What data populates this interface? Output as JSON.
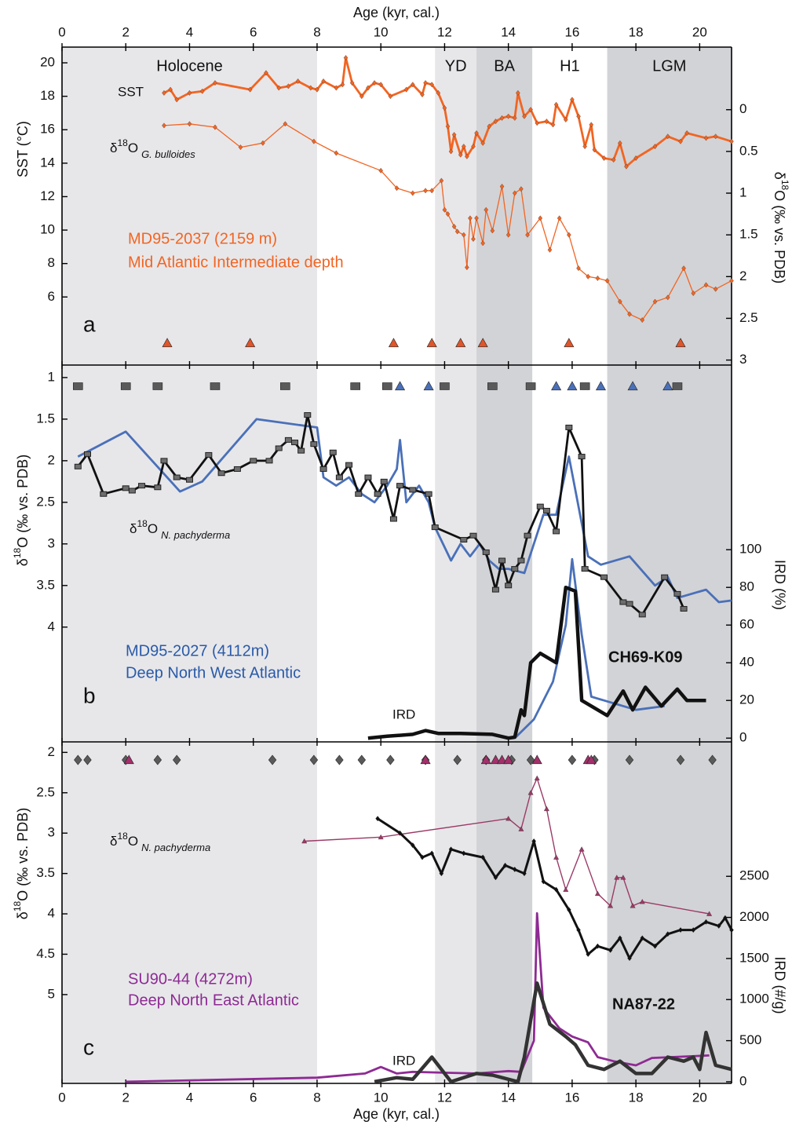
{
  "age_axis": {
    "label": "Age (kyr, cal.)",
    "xlim": [
      0,
      21
    ],
    "xticks": [
      0,
      2,
      4,
      6,
      8,
      10,
      12,
      14,
      16,
      18,
      20
    ]
  },
  "periods": [
    {
      "name": "Holocene",
      "range": [
        0,
        8
      ],
      "shade": "#e7e7ea"
    },
    {
      "name": "YD",
      "range": [
        11.7,
        13.0
      ],
      "shade": "#e7e7ea"
    },
    {
      "name": "BA",
      "range": [
        13.0,
        14.75
      ],
      "shade": "#d2d3d6"
    },
    {
      "name": "H1",
      "range": [
        14.75,
        17.1
      ],
      "shade": null
    },
    {
      "name": "LGM",
      "range": [
        17.1,
        21
      ],
      "shade": "#d2d3d6"
    }
  ],
  "chart_data": [
    {
      "type": "line",
      "label": "a",
      "ylabel": "SST (°C)",
      "y2label": {
        "pre": "δ",
        "sup": "18",
        "post": "O (‰ vs. PDB)"
      },
      "ylim": [
        1.93,
        20.94
      ],
      "yticks": [
        6,
        8,
        10,
        12,
        14,
        16,
        18,
        20
      ],
      "y2lim": [
        3.06,
        -0.75
      ],
      "y2ticks": [
        0,
        0.5,
        1,
        1.5,
        2,
        2.5,
        3
      ],
      "annotations": [
        "MD95-2037 (2159 m)",
        "Mid Atlantic Intermediate depth"
      ],
      "series": [
        {
          "name": "SST",
          "color": "#f26522",
          "width": 2.8,
          "marker": "diamond",
          "x": [
            3.2,
            3.4,
            3.6,
            4.0,
            4.4,
            4.8,
            5.9,
            6.4,
            6.8,
            7.1,
            7.4,
            7.8,
            8.0,
            8.2,
            8.6,
            8.8,
            8.9,
            9.1,
            9.4,
            9.6,
            9.8,
            10.0,
            10.3,
            10.8,
            11.0,
            11.3,
            11.4,
            11.6,
            11.8,
            12.0,
            12.1,
            12.2,
            12.3,
            12.5,
            12.6,
            12.7,
            12.9,
            13.0,
            13.2,
            13.4,
            13.6,
            13.8,
            14.0,
            14.2,
            14.3,
            14.5,
            14.7,
            14.9,
            15.2,
            15.4,
            15.5,
            15.8,
            16.0,
            16.2,
            16.4,
            16.6,
            16.7,
            17.0,
            17.3,
            17.5,
            17.7,
            18.0,
            18.6,
            19.0,
            19.4,
            19.6,
            20.2,
            20.5,
            21.0
          ],
          "values": [
            18.2,
            18.4,
            17.8,
            18.2,
            18.3,
            18.8,
            18.4,
            19.4,
            18.5,
            18.6,
            18.9,
            18.5,
            18.4,
            18.9,
            18.5,
            18.7,
            20.3,
            18.8,
            18.0,
            18.5,
            18.8,
            18.7,
            18.0,
            18.4,
            18.7,
            18.1,
            18.8,
            18.7,
            18.2,
            17.3,
            16.2,
            14.7,
            15.7,
            14.5,
            15.0,
            14.4,
            15.0,
            15.8,
            15.2,
            16.2,
            16.5,
            16.7,
            16.8,
            16.7,
            18.2,
            16.8,
            17.2,
            16.4,
            16.5,
            16.3,
            17.5,
            16.6,
            17.8,
            16.8,
            15.0,
            16.3,
            14.8,
            14.3,
            14.2,
            15.2,
            13.8,
            14.3,
            15.0,
            15.6,
            15.3,
            15.8,
            15.5,
            15.6,
            15.3
          ]
        },
        {
          "name": {
            "pre": "δ",
            "sup": "18",
            "mid": "O",
            "sub": "G. bulloides"
          },
          "axis": "y2",
          "color": "#f26522",
          "width": 1.3,
          "marker": "diamond",
          "x": [
            3.2,
            4.0,
            4.8,
            5.6,
            6.3,
            7.0,
            7.9,
            8.6,
            10.0,
            10.5,
            11.0,
            11.4,
            11.6,
            11.9,
            12.0,
            12.1,
            12.3,
            12.4,
            12.6,
            12.7,
            12.8,
            12.9,
            13.0,
            13.2,
            13.3,
            13.5,
            13.8,
            14.0,
            14.2,
            14.4,
            14.6,
            15.0,
            15.3,
            15.6,
            15.9,
            16.2,
            16.5,
            16.8,
            17.1,
            17.5,
            17.8,
            18.2,
            18.6,
            19.0,
            19.5,
            19.8,
            20.2,
            20.5,
            21.0
          ],
          "values": [
            0.19,
            0.17,
            0.21,
            0.45,
            0.4,
            0.17,
            0.38,
            0.52,
            0.73,
            0.94,
            1.0,
            0.97,
            0.97,
            0.85,
            1.2,
            1.25,
            1.4,
            1.46,
            1.5,
            1.89,
            1.3,
            1.55,
            1.3,
            1.6,
            1.2,
            1.45,
            0.92,
            1.5,
            1.0,
            0.95,
            1.5,
            1.3,
            1.68,
            1.3,
            1.5,
            1.9,
            2.0,
            2.02,
            2.05,
            2.3,
            2.45,
            2.52,
            2.3,
            2.25,
            1.9,
            2.2,
            2.1,
            2.15,
            2.05
          ]
        }
      ],
      "age_control": [
        {
          "marker": "triangle",
          "color": "#e0552a",
          "x": [
            3.3,
            5.9,
            10.4,
            11.6,
            12.5,
            13.2,
            15.9,
            19.4
          ]
        }
      ]
    },
    {
      "type": "line",
      "label": "b",
      "ylabel": {
        "pre": "δ",
        "sup": "18",
        "post": "O (‰ vs. PDB)"
      },
      "y2label": "IRD (%)",
      "ylim": [
        5.38,
        0.85
      ],
      "yticks": [
        1,
        1.5,
        2,
        2.5,
        3,
        3.5,
        4
      ],
      "y2lim": [
        -2,
        198
      ],
      "y2ticks": [
        0,
        20,
        40,
        60,
        80,
        100
      ],
      "annotations": [
        {
          "pre": "δ",
          "sup": "18",
          "mid": "O",
          "sub": "N. pachyderma"
        },
        "MD95-2027 (4112m)",
        "Deep North West Atlantic",
        "CH69-K09",
        "IRD"
      ],
      "series": [
        {
          "color": "#4a70b8",
          "width": 2.8,
          "marker": null,
          "x": [
            0.5,
            2.0,
            3.7,
            4.4,
            6.1,
            8.0,
            8.2,
            8.6,
            9.0,
            9.4,
            9.8,
            10.2,
            10.5,
            10.6,
            10.8,
            11.2,
            11.5,
            11.7,
            12.2,
            12.5,
            12.8,
            13.1,
            13.4,
            13.7,
            14.0,
            14.5,
            15.1,
            15.5,
            15.9,
            16.2,
            16.5,
            16.9,
            17.8,
            18.6,
            19.0,
            19.3,
            20.2,
            20.6,
            21.0
          ],
          "values": [
            1.95,
            1.65,
            2.37,
            2.25,
            1.5,
            1.6,
            2.2,
            2.3,
            2.2,
            2.4,
            2.5,
            2.3,
            2.1,
            1.75,
            2.5,
            2.3,
            2.5,
            2.8,
            3.2,
            3.0,
            3.15,
            3.0,
            3.2,
            3.3,
            3.3,
            3.35,
            2.65,
            2.65,
            1.95,
            2.55,
            3.15,
            3.25,
            3.15,
            3.5,
            3.4,
            3.65,
            3.55,
            3.7,
            3.68
          ]
        },
        {
          "color": "#111111",
          "width": 2.8,
          "marker": "square",
          "x": [
            0.5,
            0.8,
            1.3,
            2.0,
            2.2,
            2.5,
            3.0,
            3.2,
            3.6,
            4.0,
            4.6,
            5.0,
            5.5,
            6.0,
            6.5,
            6.8,
            7.1,
            7.3,
            7.5,
            7.7,
            7.9,
            8.2,
            8.5,
            8.7,
            9.0,
            9.3,
            9.6,
            9.9,
            10.1,
            10.4,
            10.6,
            11.0,
            11.5,
            11.7,
            12.6,
            12.9,
            13.3,
            13.6,
            13.8,
            14.0,
            14.2,
            14.4,
            14.6,
            15.0,
            15.2,
            15.5,
            15.9,
            16.3,
            16.4,
            17.0,
            17.6,
            17.8,
            18.2,
            18.9,
            19.3,
            19.5
          ],
          "values": [
            2.07,
            1.92,
            2.4,
            2.33,
            2.36,
            2.3,
            2.32,
            2.0,
            2.2,
            2.23,
            1.93,
            2.15,
            2.1,
            2.0,
            2.0,
            1.85,
            1.75,
            1.78,
            1.88,
            1.45,
            1.8,
            2.1,
            1.9,
            2.2,
            2.05,
            2.4,
            2.2,
            2.4,
            2.25,
            2.7,
            2.3,
            2.35,
            2.4,
            2.8,
            2.95,
            2.9,
            3.1,
            3.55,
            3.2,
            3.5,
            3.3,
            3.2,
            2.9,
            2.55,
            2.6,
            2.85,
            1.6,
            1.95,
            3.3,
            3.4,
            3.7,
            3.72,
            3.85,
            3.4,
            3.6,
            3.78
          ]
        },
        {
          "axis": "y2",
          "color": "#4a70b8",
          "width": 2.8,
          "marker": null,
          "x": [
            14.2,
            14.8,
            15.4,
            15.8,
            16.0,
            16.3,
            16.6,
            17.0,
            18.0,
            18.9
          ],
          "values": [
            0,
            10,
            30,
            60,
            95,
            55,
            22,
            20,
            15,
            17
          ]
        },
        {
          "axis": "y2",
          "color": "#111111",
          "width": 4.5,
          "marker": null,
          "x": [
            9.6,
            10.2,
            11.0,
            11.4,
            11.8,
            12.5,
            13.5,
            14.0,
            14.2,
            14.4,
            14.5,
            14.7,
            15.0,
            15.5,
            15.8,
            16.1,
            16.3,
            16.8,
            17.1,
            17.6,
            17.9,
            18.3,
            18.8,
            19.3,
            19.6,
            20.0,
            20.2
          ],
          "values": [
            0,
            1,
            2,
            4,
            2.5,
            2.5,
            2,
            0,
            0.5,
            15,
            12,
            40,
            45,
            40,
            80,
            78,
            20,
            15,
            12,
            25,
            15,
            27,
            17,
            26,
            20,
            20,
            20
          ]
        }
      ],
      "age_control": [
        {
          "marker": "square",
          "color": "#5a5a5a",
          "x": [
            0.5,
            2.0,
            3.0,
            4.8,
            7.0,
            9.2,
            10.2,
            12.0,
            13.5,
            14.7,
            16.4,
            19.3
          ]
        },
        {
          "marker": "triangle",
          "color": "#4a70b8",
          "x": [
            10.6,
            11.5,
            15.5,
            16.0,
            16.9,
            17.9,
            19.0
          ]
        }
      ]
    },
    {
      "type": "line",
      "label": "c",
      "ylabel": {
        "pre": "δ",
        "sup": "18",
        "post": "O (‰ vs. PDB)"
      },
      "y2label": "IRD (#/g)",
      "ylim": [
        6.1,
        1.87
      ],
      "yticks": [
        2,
        2.5,
        3,
        3.5,
        4,
        4.5,
        5
      ],
      "y2lim": [
        -20,
        4136
      ],
      "y2ticks": [
        0,
        500,
        1000,
        1500,
        2000,
        2500
      ],
      "annotations": [
        {
          "pre": "δ",
          "sup": "18",
          "mid": "O",
          "sub": "N. pachyderma"
        },
        "SU90-44 (4272m)",
        "Deep North East Atlantic",
        "NA87-22",
        "IRD"
      ],
      "series": [
        {
          "color": "#9b3a66",
          "width": 1.4,
          "marker": "triangle",
          "x": [
            7.6,
            10.0,
            14.0,
            14.4,
            14.7,
            14.9,
            15.2,
            15.5,
            15.8,
            16.3,
            16.8,
            17.2,
            17.4,
            17.6,
            17.9,
            18.2,
            20.3
          ],
          "values": [
            3.1,
            3.05,
            2.82,
            2.95,
            2.5,
            2.32,
            2.7,
            3.3,
            3.7,
            3.2,
            3.75,
            3.9,
            3.55,
            3.55,
            3.9,
            3.85,
            4.0
          ]
        },
        {
          "color": "#111111",
          "width": 3,
          "marker": "diamond",
          "x": [
            9.9,
            10.6,
            11.0,
            11.3,
            11.6,
            11.9,
            12.2,
            12.6,
            13.2,
            13.6,
            13.9,
            14.2,
            14.5,
            14.8,
            15.1,
            15.5,
            15.9,
            16.2,
            16.5,
            16.8,
            17.2,
            17.5,
            17.8,
            18.2,
            18.6,
            19.0,
            19.4,
            19.8,
            20.2,
            20.6,
            20.8,
            21.0
          ],
          "values": [
            2.82,
            3.0,
            3.15,
            3.3,
            3.25,
            3.5,
            3.2,
            3.25,
            3.3,
            3.55,
            3.4,
            3.45,
            3.5,
            3.1,
            3.6,
            3.7,
            3.95,
            4.2,
            4.5,
            4.4,
            4.45,
            4.3,
            4.55,
            4.3,
            4.4,
            4.25,
            4.2,
            4.2,
            4.1,
            4.15,
            4.05,
            4.2
          ]
        },
        {
          "axis": "y2",
          "color": "#8e2a93",
          "width": 2.8,
          "marker": null,
          "x": [
            2.0,
            8.0,
            9.5,
            10.0,
            10.5,
            11.0,
            12.0,
            13.0,
            14.0,
            14.4,
            14.8,
            14.9,
            15.1,
            15.6,
            16.0,
            16.5,
            16.8,
            17.3,
            18.0,
            18.5,
            20.3
          ],
          "values": [
            0,
            50,
            100,
            180,
            100,
            120,
            110,
            100,
            130,
            120,
            500,
            2050,
            900,
            650,
            550,
            480,
            300,
            250,
            200,
            290,
            320
          ]
        },
        {
          "axis": "y2",
          "color": "#333333",
          "width": 4.5,
          "marker": null,
          "x": [
            9.8,
            10.5,
            11.0,
            11.6,
            12.2,
            13.0,
            13.5,
            14.3,
            14.5,
            14.9,
            15.3,
            15.8,
            16.1,
            16.5,
            17.0,
            17.5,
            18.0,
            18.5,
            19.0,
            19.5,
            19.8,
            20.0,
            20.2,
            20.5,
            21.0
          ],
          "values": [
            0,
            50,
            30,
            300,
            0,
            100,
            80,
            0,
            300,
            1200,
            700,
            550,
            450,
            200,
            150,
            250,
            100,
            100,
            300,
            250,
            300,
            150,
            600,
            200,
            150
          ]
        }
      ],
      "age_control": [
        {
          "marker": "diamond",
          "color": "#5a5a5a",
          "x": [
            0.5,
            0.8,
            2.0,
            3.0,
            3.6,
            6.6,
            7.9,
            8.7,
            9.4,
            10.3,
            11.4,
            12.4,
            13.3,
            14.1,
            14.7,
            16.0,
            16.7,
            17.8,
            19.4,
            20.4
          ]
        },
        {
          "marker": "triangle",
          "color": "#a3306b",
          "x": [
            2.1,
            11.4,
            13.3,
            13.6,
            13.8,
            14.0,
            14.9,
            16.5,
            16.6
          ]
        }
      ]
    }
  ]
}
